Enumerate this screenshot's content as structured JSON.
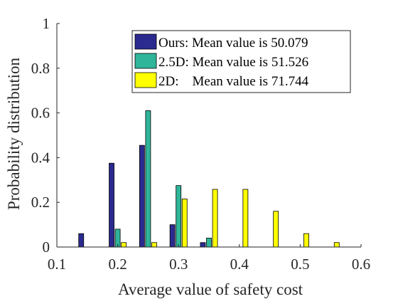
{
  "chart_data": {
    "type": "bar",
    "xlabel": "Average value of safety cost",
    "ylabel": "Probability distribution",
    "xlim": [
      0.1,
      0.6
    ],
    "ylim": [
      0,
      1
    ],
    "xticks": [
      "0.1",
      "0.2",
      "0.3",
      "0.4",
      "0.5",
      "0.6"
    ],
    "yticks": [
      "0",
      "0.2",
      "0.4",
      "0.6",
      "0.8",
      "1"
    ],
    "grid": false,
    "legend_position": "top-right",
    "series": [
      {
        "name": "Ours: Mean value is 50.079",
        "color": "#2b2a8f",
        "x": [
          0.14,
          0.19,
          0.24,
          0.29,
          0.34
        ],
        "values": [
          0.06,
          0.375,
          0.455,
          0.1,
          0.02
        ]
      },
      {
        "name": "2.5D: Mean value is 51.526",
        "color": "#2fb59a",
        "x": [
          0.2,
          0.25,
          0.3,
          0.35
        ],
        "values": [
          0.08,
          0.61,
          0.275,
          0.04
        ]
      },
      {
        "name": "2D:    Mean value is 71.744",
        "color": "#ffff00",
        "x": [
          0.21,
          0.26,
          0.31,
          0.36,
          0.41,
          0.46,
          0.51,
          0.56
        ],
        "values": [
          0.02,
          0.02,
          0.215,
          0.258,
          0.258,
          0.16,
          0.06,
          0.02
        ]
      }
    ]
  }
}
